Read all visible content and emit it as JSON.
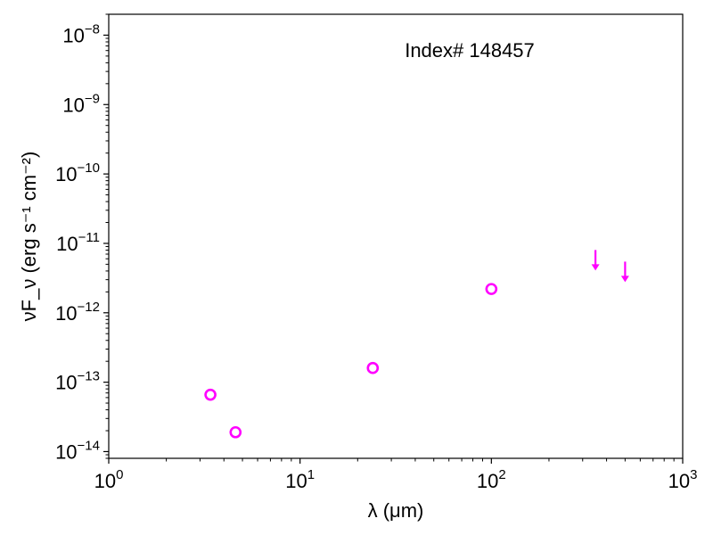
{
  "chart_data": {
    "type": "scatter",
    "xscale": "log",
    "yscale": "log",
    "xlim": [
      1,
      1000
    ],
    "ylim": [
      8e-15,
      2e-08
    ],
    "xlabel": "λ (μm)",
    "ylabel": "νF_ν (erg s⁻¹ cm⁻²)",
    "annotation": "Index# 148457",
    "marker_color": "#ff00ff",
    "x_ticks": [
      {
        "value": 1,
        "base": "10",
        "exp": "0"
      },
      {
        "value": 10,
        "base": "10",
        "exp": "1"
      },
      {
        "value": 100,
        "base": "10",
        "exp": "2"
      },
      {
        "value": 1000,
        "base": "10",
        "exp": "3"
      }
    ],
    "y_ticks": [
      {
        "value": 1e-14,
        "base": "10",
        "exp": "−14"
      },
      {
        "value": 1e-13,
        "base": "10",
        "exp": "−13"
      },
      {
        "value": 1e-12,
        "base": "10",
        "exp": "−12"
      },
      {
        "value": 1e-11,
        "base": "10",
        "exp": "−11"
      },
      {
        "value": 1e-10,
        "base": "10",
        "exp": "−10"
      },
      {
        "value": 1e-09,
        "base": "10",
        "exp": "−9"
      },
      {
        "value": 1e-08,
        "base": "10",
        "exp": "−8"
      }
    ],
    "points": [
      {
        "x": 3.4,
        "y": 6.6e-14
      },
      {
        "x": 4.6,
        "y": 1.9e-14
      },
      {
        "x": 24,
        "y": 1.6e-13
      },
      {
        "x": 100,
        "y": 2.2e-12
      }
    ],
    "upper_limits": [
      {
        "x": 350,
        "y": 5e-12
      },
      {
        "x": 500,
        "y": 3.4e-12
      }
    ]
  }
}
